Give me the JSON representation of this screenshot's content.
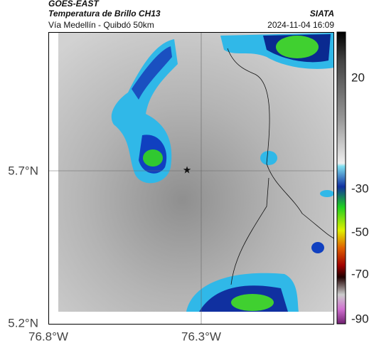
{
  "header": {
    "source": "GOES-EAST",
    "title": "Temperatura de Brillo CH13",
    "subtitle": "Vía Medellín - Quibdó 50km",
    "org": "SIATA",
    "timestamp": "2024-11-04 16:09"
  },
  "map": {
    "lat_labels": [
      "5.7°N",
      "5.2°N"
    ],
    "lon_labels": [
      "76.8°W",
      "76.3°W"
    ]
  },
  "colorbar": {
    "ticks": [
      20,
      -30,
      -50,
      -70,
      -90
    ]
  }
}
